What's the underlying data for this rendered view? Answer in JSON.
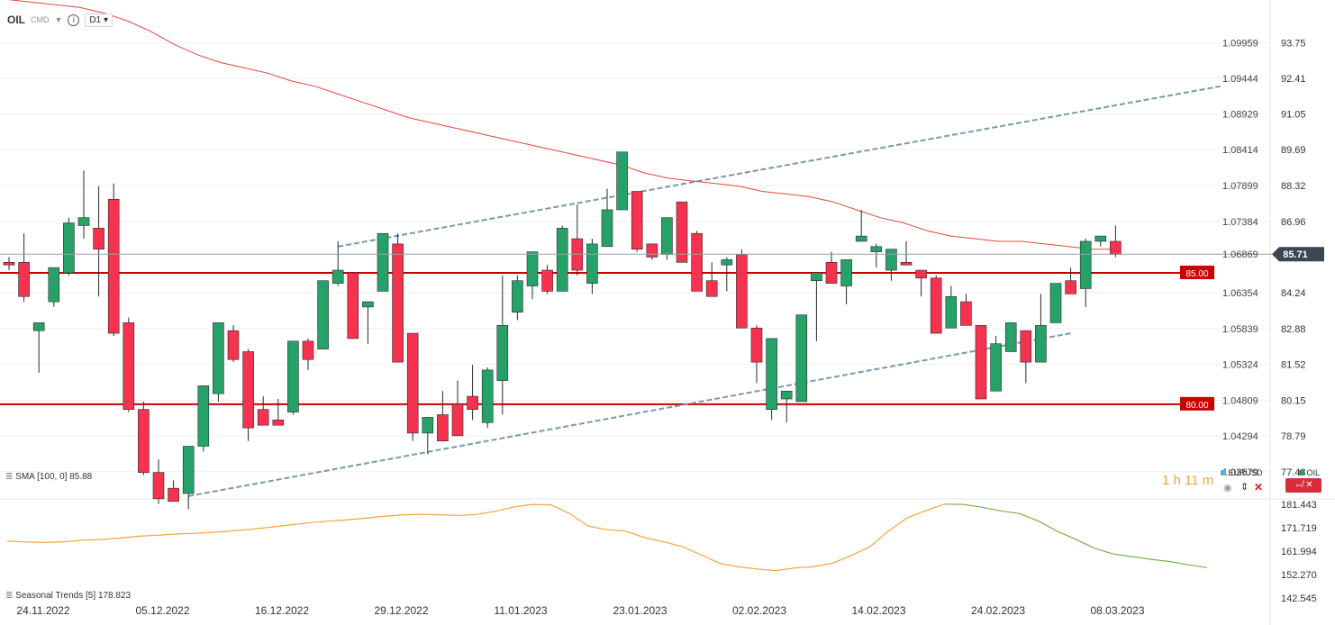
{
  "header": {
    "symbol": "OIL",
    "type": "CMD",
    "timeframe": "D1"
  },
  "indicators": {
    "sma_label": "SMA [100, 0]",
    "sma_value": "85.88",
    "seasonal_label": "Seasonal",
    "seasonal_name": "Trends",
    "seasonal_period": "[5]",
    "seasonal_value": "178.823"
  },
  "legend": {
    "eurusd": "EURUSD",
    "oil": "OIL",
    "timer_hours": "1 h",
    "timer_minutes": "11 m"
  },
  "colors": {
    "up": "#26a269",
    "down": "#f5334f",
    "sma": "#e8453c",
    "level": "#cc0000",
    "channel": "#7a98b0",
    "seasonal_orange": "#f4a43c",
    "seasonal_green": "#7cb342",
    "price_tag": "#3a4654",
    "eurusd": "#4fb3e8"
  },
  "chart_data": {
    "type": "candlestick",
    "ylim": [
      76.6,
      94.7
    ],
    "y_ticks_right": [
      "93.75",
      "92.41",
      "91.05",
      "89.69",
      "88.32",
      "86.96",
      "85.71",
      "84.24",
      "82.88",
      "81.52",
      "80.15",
      "78.79",
      "77.43"
    ],
    "y_ticks_eurusd": [
      "1.09959",
      "1.09444",
      "1.08929",
      "1.08414",
      "1.07899",
      "1.07384",
      "1.06869",
      "1.06354",
      "1.05839",
      "1.05324",
      "1.04809",
      "1.04294",
      "1.03579"
    ],
    "x_labels": [
      "24.11.2022",
      "05.12.2022",
      "16.12.2022",
      "29.12.2022",
      "11.01.2023",
      "23.01.2023",
      "02.02.2023",
      "14.02.2023",
      "24.02.2023",
      "08.03.2023"
    ],
    "last_price": "85.71",
    "last_price_value": 85.71,
    "levels": [
      {
        "value": 85.0,
        "label": "85.00"
      },
      {
        "value": 80.0,
        "label": "80.00"
      }
    ],
    "ohlc": [
      [
        85.4,
        85.6,
        85.1,
        85.3
      ],
      [
        85.4,
        86.5,
        83.9,
        84.1
      ],
      [
        82.8,
        83.0,
        81.2,
        83.1
      ],
      [
        83.9,
        85.0,
        83.7,
        85.2
      ],
      [
        85.0,
        87.1,
        84.9,
        86.9
      ],
      [
        86.8,
        88.9,
        86.3,
        87.1
      ],
      [
        86.7,
        88.3,
        84.1,
        85.9
      ],
      [
        87.8,
        88.4,
        82.6,
        82.7
      ],
      [
        83.1,
        83.3,
        79.7,
        79.8
      ],
      [
        79.8,
        80.1,
        77.3,
        77.4
      ],
      [
        77.4,
        77.9,
        76.2,
        76.4
      ],
      [
        76.8,
        77.1,
        76.3,
        76.3
      ],
      [
        76.6,
        77.8,
        76.0,
        78.4
      ],
      [
        78.4,
        80.4,
        78.2,
        80.7
      ],
      [
        80.4,
        83.0,
        80.1,
        83.1
      ],
      [
        82.8,
        83.0,
        81.6,
        81.7
      ],
      [
        82.0,
        82.1,
        78.6,
        79.1
      ],
      [
        79.8,
        80.3,
        79.7,
        79.2
      ],
      [
        79.4,
        80.2,
        79.8,
        79.2
      ],
      [
        79.7,
        82.4,
        79.6,
        82.4
      ],
      [
        82.4,
        82.5,
        81.3,
        81.7
      ],
      [
        82.1,
        84.6,
        82.1,
        84.7
      ],
      [
        84.6,
        86.2,
        84.5,
        85.1
      ],
      [
        85.0,
        85.0,
        83.0,
        82.5
      ],
      [
        83.7,
        83.6,
        82.3,
        83.9
      ],
      [
        84.3,
        86.3,
        84.4,
        86.5
      ],
      [
        86.1,
        86.5,
        82.2,
        81.6
      ],
      [
        82.7,
        82.6,
        78.6,
        78.9
      ],
      [
        78.9,
        79.4,
        78.1,
        79.5
      ],
      [
        79.6,
        80.5,
        79.1,
        78.6
      ],
      [
        80.0,
        80.9,
        79.4,
        78.8
      ],
      [
        80.3,
        81.5,
        79.4,
        79.8
      ],
      [
        79.3,
        81.4,
        79.1,
        81.3
      ],
      [
        80.9,
        84.9,
        79.6,
        83.0
      ],
      [
        83.5,
        84.9,
        83.2,
        84.7
      ],
      [
        84.5,
        85.6,
        84.0,
        85.8
      ],
      [
        85.1,
        85.3,
        84.2,
        84.3
      ],
      [
        84.3,
        86.8,
        84.3,
        86.7
      ],
      [
        86.3,
        87.6,
        84.9,
        85.1
      ],
      [
        84.6,
        86.3,
        84.2,
        86.1
      ],
      [
        86.0,
        88.2,
        86.0,
        87.4
      ],
      [
        87.4,
        88.1,
        88.5,
        89.6
      ],
      [
        88.1,
        88.0,
        85.8,
        85.9
      ],
      [
        86.1,
        86.1,
        85.5,
        85.6
      ],
      [
        85.7,
        87.1,
        85.5,
        87.1
      ],
      [
        87.7,
        87.7,
        85.6,
        85.4
      ],
      [
        86.5,
        86.6,
        84.5,
        84.3
      ],
      [
        84.7,
        85.4,
        84.7,
        84.1
      ],
      [
        85.3,
        85.6,
        84.3,
        85.5
      ],
      [
        85.7,
        85.9,
        82.9,
        82.9
      ],
      [
        82.9,
        83.0,
        80.8,
        81.6
      ],
      [
        79.8,
        79.4,
        82.3,
        82.5
      ],
      [
        80.2,
        80.3,
        79.3,
        80.5
      ],
      [
        80.1,
        81.5,
        82.6,
        83.4
      ],
      [
        84.7,
        84.7,
        82.4,
        85.0
      ],
      [
        85.4,
        85.1,
        85.8,
        84.6
      ],
      [
        84.5,
        84.2,
        83.8,
        85.5
      ],
      [
        86.2,
        86.4,
        87.4,
        86.4
      ],
      [
        85.8,
        86.1,
        85.2,
        86.0
      ],
      [
        85.1,
        85.4,
        84.7,
        85.9
      ],
      [
        85.4,
        85.5,
        86.2,
        85.3
      ],
      [
        85.1,
        84.6,
        84.1,
        84.8
      ],
      [
        84.8,
        84.9,
        83.6,
        82.7
      ],
      [
        82.9,
        84.5,
        83.9,
        84.1
      ],
      [
        83.9,
        84.2,
        83.0,
        83.0
      ],
      [
        83.0,
        82.6,
        80.5,
        80.2
      ],
      [
        80.5,
        80.5,
        82.6,
        82.3
      ],
      [
        82.0,
        82.3,
        82.0,
        83.1
      ],
      [
        82.8,
        82.8,
        80.8,
        81.6
      ],
      [
        81.6,
        82.7,
        84.2,
        83.0
      ],
      [
        83.1,
        83.4,
        84.5,
        84.6
      ],
      [
        84.7,
        85.2,
        84.4,
        84.2
      ],
      [
        84.4,
        83.7,
        86.3,
        86.2
      ],
      [
        86.2,
        86.0,
        86.4,
        86.4
      ],
      [
        86.2,
        85.6,
        86.8,
        85.7
      ]
    ],
    "sma": [
      95.4,
      95.3,
      95.2,
      95.1,
      94.9,
      94.6,
      94.2,
      93.7,
      93.3,
      93.0,
      92.8,
      92.6,
      92.3,
      92.1,
      91.8,
      91.5,
      91.2,
      90.9,
      90.7,
      90.5,
      90.3,
      90.1,
      89.9,
      89.7,
      89.5,
      89.3,
      89.1,
      88.8,
      88.6,
      88.5,
      88.4,
      88.3,
      88.1,
      88.0,
      87.9,
      87.7,
      87.4,
      87.1,
      86.9,
      86.6,
      86.4,
      86.3,
      86.2,
      86.2,
      86.1,
      86.0,
      85.9,
      85.9
    ],
    "channel_upper": {
      "start": [
        22,
        86.0
      ],
      "end": [
        81,
        92.1
      ]
    },
    "channel_lower": {
      "start": [
        12,
        76.5
      ],
      "end": [
        71,
        82.7
      ]
    },
    "seasonal": [
      166.2,
      165.8,
      165.6,
      165.9,
      166.6,
      166.8,
      167.4,
      168.2,
      168.6,
      169.1,
      169.4,
      169.8,
      170.4,
      171.1,
      171.9,
      172.8,
      173.7,
      174.4,
      174.9,
      175.6,
      176.4,
      177.0,
      177.3,
      177.1,
      176.8,
      177.2,
      178.5,
      180.3,
      181.4,
      181.2,
      177.6,
      172.4,
      170.9,
      170.3,
      167.6,
      165.9,
      163.9,
      160.5,
      156.9,
      155.5,
      154.6,
      153.9,
      155.0,
      155.6,
      156.9,
      160.1,
      163.8,
      170.3,
      175.8,
      178.9,
      181.5,
      181.4,
      180.2,
      178.7,
      177.6,
      174.5,
      170.3,
      166.9,
      163.2,
      160.8,
      159.7,
      158.6,
      157.7,
      156.3,
      155.2
    ]
  }
}
